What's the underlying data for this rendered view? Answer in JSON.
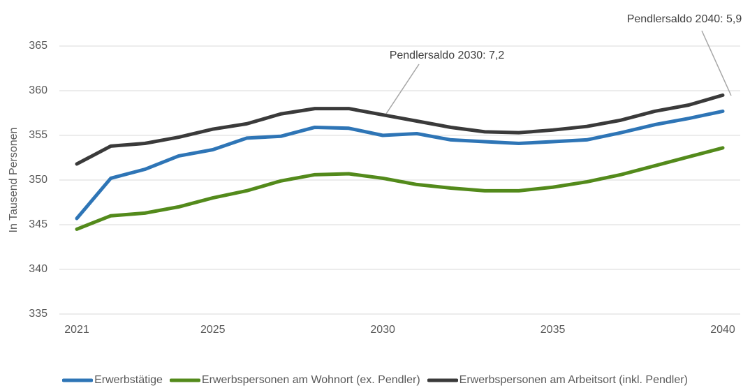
{
  "chart_data": {
    "type": "line",
    "y_label": "In Tausend Personen",
    "x": [
      2021,
      2022,
      2023,
      2024,
      2025,
      2026,
      2027,
      2028,
      2029,
      2030,
      2031,
      2032,
      2033,
      2034,
      2035,
      2036,
      2037,
      2038,
      2039,
      2040
    ],
    "xlim": [
      2021,
      2040
    ],
    "xticks": [
      2021,
      2025,
      2030,
      2035,
      2040
    ],
    "ylim": [
      335,
      365
    ],
    "yticks": [
      335,
      340,
      345,
      350,
      355,
      360,
      365
    ],
    "grid": true,
    "legend": "bottom",
    "annotations": [
      {
        "text": "Pendlersaldo 2030: 7,2"
      },
      {
        "text": "Pendlersaldo 2040: 5,9"
      }
    ],
    "series": [
      {
        "name": "Erwerbstätige",
        "color": "#2e75b6",
        "values": [
          345.7,
          350.2,
          351.2,
          352.7,
          353.4,
          354.7,
          354.9,
          355.9,
          355.8,
          355.0,
          355.2,
          354.5,
          354.3,
          354.1,
          354.3,
          354.5,
          355.3,
          356.2,
          356.9,
          357.7
        ]
      },
      {
        "name": "Erwerbspersonen am Wohnort (ex. Pendler)",
        "color": "#538a1b",
        "values": [
          344.5,
          346.0,
          346.3,
          347.0,
          348.0,
          348.8,
          349.9,
          350.6,
          350.7,
          350.2,
          349.5,
          349.1,
          348.8,
          348.8,
          349.2,
          349.8,
          350.6,
          351.6,
          352.6,
          353.6
        ]
      },
      {
        "name": "Erwerbspersonen am Arbeitsort (inkl. Pendler)",
        "color": "#3a3a3a",
        "values": [
          351.8,
          353.8,
          354.1,
          354.8,
          355.7,
          356.3,
          357.4,
          358.0,
          358.0,
          357.3,
          356.6,
          355.9,
          355.4,
          355.3,
          355.6,
          356.0,
          356.7,
          357.7,
          358.4,
          359.5
        ]
      }
    ]
  }
}
